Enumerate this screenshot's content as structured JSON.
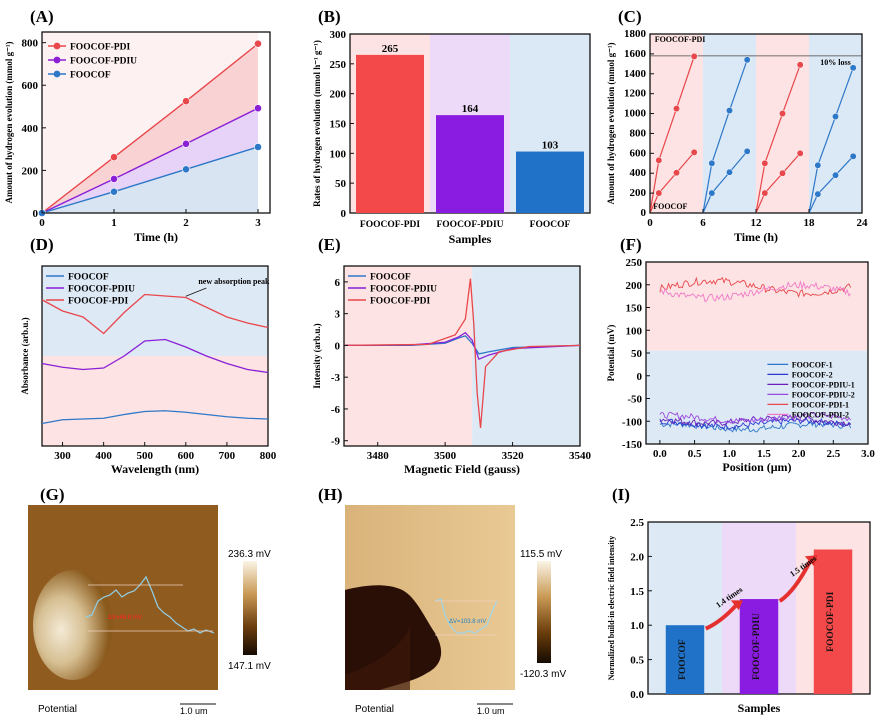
{
  "chart_data": [
    {
      "panel": "(A)",
      "type": "line",
      "xlabel": "Time (h)",
      "ylabel": "Amount of hydrogen evolution  (mmol g⁻¹)",
      "xlim": [
        0,
        3
      ],
      "ylim": [
        0,
        800
      ],
      "xticks": [
        "0",
        "1",
        "2",
        "3"
      ],
      "yticks": [
        "0",
        "200",
        "400",
        "600",
        "800"
      ],
      "x": [
        0,
        1,
        2,
        3
      ],
      "series": [
        {
          "name": "FOOCOF-PDI",
          "color": "#e8474b",
          "values": [
            0,
            262,
            525,
            795
          ]
        },
        {
          "name": "FOOCOF-PDIU",
          "color": "#8a1fd6",
          "values": [
            0,
            160,
            325,
            492
          ]
        },
        {
          "name": "FOOCOF",
          "color": "#2e78c9",
          "values": [
            0,
            100,
            205,
            310
          ]
        }
      ],
      "legend": "top-left"
    },
    {
      "panel": "(B)",
      "type": "bar",
      "xlabel": "Samples",
      "ylabel": "Rates of hydrogen evolution (mmol h⁻¹ g⁻¹)",
      "ylim": [
        0,
        300
      ],
      "yticks": [
        "0",
        "50",
        "100",
        "150",
        "200",
        "250",
        "300"
      ],
      "categories": [
        "FOOCOF-PDI",
        "FOOCOF-PDIU",
        "FOOCOF"
      ],
      "values": [
        265,
        164,
        103
      ],
      "labels": [
        "265",
        "164",
        "103"
      ],
      "colors": [
        "#f4494a",
        "#8a1be0",
        "#1f72c8"
      ]
    },
    {
      "panel": "(C)",
      "type": "line",
      "xlabel": "Time (h)",
      "ylabel": "Amount of hydrogen evolution  (mmol g⁻¹)",
      "xlim": [
        0,
        24
      ],
      "ylim": [
        0,
        1800
      ],
      "xticks": [
        "0",
        "6",
        "12",
        "18",
        "24"
      ],
      "yticks": [
        "0",
        "200",
        "400",
        "600",
        "800",
        "1000",
        "1200",
        "1400",
        "1600",
        "1800"
      ],
      "annotations": [
        "FOOCOF-PDI",
        "FOOCOF",
        "10% loss"
      ],
      "reference_line": 1580,
      "series": [
        {
          "name": "FOOCOF-PDI",
          "color": "#e8474b",
          "cycles": [
            [
              [
                0,
                0
              ],
              [
                1,
                530
              ],
              [
                3,
                1050
              ],
              [
                5,
                1575
              ]
            ],
            [
              [
                12,
                0
              ],
              [
                13,
                500
              ],
              [
                15,
                1000
              ],
              [
                17,
                1490
              ]
            ]
          ]
        },
        {
          "name": "FOOCOF-PDI-2",
          "color": "#e8474b",
          "cycles": [
            [
              [
                0,
                0
              ],
              [
                1,
                200
              ],
              [
                3,
                405
              ],
              [
                5,
                610
              ]
            ],
            [
              [
                12,
                0
              ],
              [
                13,
                200
              ],
              [
                15,
                400
              ],
              [
                17,
                600
              ]
            ]
          ]
        },
        {
          "name": "FOOCOF",
          "color": "#2e78c9",
          "cycles": [
            [
              [
                6,
                0
              ],
              [
                7,
                500
              ],
              [
                9,
                1030
              ],
              [
                11,
                1540
              ]
            ],
            [
              [
                18,
                0
              ],
              [
                19,
                480
              ],
              [
                21,
                970
              ],
              [
                23,
                1460
              ]
            ]
          ]
        },
        {
          "name": "FOOCOF-2",
          "color": "#2e78c9",
          "cycles": [
            [
              [
                6,
                0
              ],
              [
                7,
                200
              ],
              [
                9,
                410
              ],
              [
                11,
                620
              ]
            ],
            [
              [
                18,
                0
              ],
              [
                19,
                190
              ],
              [
                21,
                380
              ],
              [
                23,
                570
              ]
            ]
          ]
        }
      ]
    },
    {
      "panel": "(D)",
      "type": "line",
      "xlabel": "Wavelength (nm)",
      "ylabel": "Absorbance (arb.u.)",
      "xlim": [
        250,
        800
      ],
      "xticks": [
        "300",
        "400",
        "500",
        "600",
        "700",
        "800"
      ],
      "annotations": [
        "new absorption peak"
      ],
      "legend": "top-left",
      "x": [
        250,
        300,
        350,
        400,
        450,
        500,
        550,
        600,
        650,
        700,
        750,
        800
      ],
      "series": [
        {
          "name": "FOOCOF",
          "color": "#2e78c9",
          "values": [
            0.3,
            0.35,
            0.36,
            0.37,
            0.42,
            0.46,
            0.47,
            0.45,
            0.42,
            0.39,
            0.37,
            0.36
          ]
        },
        {
          "name": "FOOCOF-PDIU",
          "color": "#8a1fd6",
          "values": [
            1.1,
            1.05,
            1.02,
            1.04,
            1.2,
            1.4,
            1.42,
            1.32,
            1.2,
            1.1,
            1.02,
            0.98
          ]
        },
        {
          "name": "FOOCOF-PDI",
          "color": "#e8474b",
          "values": [
            1.95,
            1.8,
            1.72,
            1.5,
            1.78,
            2.02,
            2.0,
            1.98,
            1.85,
            1.72,
            1.64,
            1.58
          ]
        }
      ]
    },
    {
      "panel": "(E)",
      "type": "line",
      "xlabel": "Magnetic Field (gauss)",
      "ylabel": "Intensity (arb.u.)",
      "xlim": [
        3470,
        3540
      ],
      "ylim": [
        -9.5,
        7.5
      ],
      "xticks": [
        "3480",
        "3500",
        "3520",
        "3540"
      ],
      "yticks": [
        "6",
        "3",
        "0",
        "-3",
        "-6",
        "-9"
      ],
      "legend": "top-left",
      "series": [
        {
          "name": "FOOCOF",
          "color": "#2e78c9",
          "points": [
            [
              3470,
              0
            ],
            [
              3490,
              0
            ],
            [
              3500,
              0.2
            ],
            [
              3504,
              0.7
            ],
            [
              3506,
              0.9
            ],
            [
              3508,
              0.2
            ],
            [
              3510,
              -0.8
            ],
            [
              3513,
              -0.6
            ],
            [
              3520,
              -0.2
            ],
            [
              3540,
              0
            ]
          ]
        },
        {
          "name": "FOOCOF-PDIU",
          "color": "#8a1fd6",
          "points": [
            [
              3470,
              0
            ],
            [
              3490,
              0.05
            ],
            [
              3500,
              0.3
            ],
            [
              3504,
              0.8
            ],
            [
              3506,
              1.2
            ],
            [
              3508,
              0.5
            ],
            [
              3510,
              -1.3
            ],
            [
              3513,
              -0.9
            ],
            [
              3520,
              -0.3
            ],
            [
              3540,
              0
            ]
          ]
        },
        {
          "name": "FOOCOF-PDI",
          "color": "#e8474b",
          "points": [
            [
              3470,
              0
            ],
            [
              3495,
              0.1
            ],
            [
              3503,
              1.0
            ],
            [
              3506,
              2.5
            ],
            [
              3507.5,
              6.3
            ],
            [
              3508.5,
              2.0
            ],
            [
              3509.5,
              -4.5
            ],
            [
              3510.5,
              -7.8
            ],
            [
              3512,
              -2.0
            ],
            [
              3516,
              -0.6
            ],
            [
              3525,
              -0.1
            ],
            [
              3540,
              0
            ]
          ]
        }
      ]
    },
    {
      "panel": "(F)",
      "type": "line",
      "xlabel": "Position (μm)",
      "ylabel": "Potential (mV)",
      "xlim": [
        -0.2,
        3.0
      ],
      "ylim": [
        -150,
        250
      ],
      "xticks": [
        "0.0",
        "0.5",
        "1.0",
        "1.5",
        "2.0",
        "2.5",
        "3.0"
      ],
      "yticks": [
        "250",
        "200",
        "150",
        "100",
        "50",
        "0",
        "-50",
        "-100",
        "-150"
      ],
      "legend": "center-right",
      "series": [
        {
          "name": "FOOCOF-1",
          "color": "#2e78c9",
          "level": -112
        },
        {
          "name": "FOOCOF-2",
          "color": "#2a3bd1",
          "level": -105
        },
        {
          "name": "FOOCOF-PDIU-1",
          "color": "#6a1fb6",
          "level": -98
        },
        {
          "name": "FOOCOF-PDIU-2",
          "color": "#9b4ae0",
          "level": -93
        },
        {
          "name": "FOOCOF-PDI-1",
          "color": "#e8474b",
          "level": 195
        },
        {
          "name": "FOOCOF-PDI-2",
          "color": "#f07ac8",
          "level": 185
        }
      ]
    },
    {
      "panel": "(I)",
      "type": "bar",
      "xlabel": "Samples",
      "ylabel": "Normalized build-in electric field intensity",
      "ylim": [
        0,
        2.5
      ],
      "yticks": [
        "0.0",
        "0.5",
        "1.0",
        "1.5",
        "2.0",
        "2.5"
      ],
      "categories": [
        "FOOCOF",
        "FOOCOF-PDIU",
        "FOOCOF-PDI"
      ],
      "values": [
        1.0,
        1.38,
        2.1
      ],
      "colors": [
        "#1f72c8",
        "#8a1be0",
        "#f4494a"
      ],
      "annotations": [
        "1.4 times",
        "1.5 times"
      ]
    }
  ],
  "panels": {
    "a": "(A)",
    "b": "(B)",
    "c": "(C)",
    "d": "(D)",
    "e": "(E)",
    "f": "(F)",
    "g": "(G)",
    "h": "(H)",
    "i": "(I)"
  },
  "afm_g": {
    "max": "236.3 mV",
    "min": "147.1 mV",
    "label": "Potential",
    "scalebar": "1.0 um",
    "delta": "ΔV=46.8 mV"
  },
  "afm_h": {
    "max": "115.5 mV",
    "min": "-120.3 mV",
    "label": "Potential",
    "scalebar": "1.0 um",
    "delta": "ΔV=103.8 mV"
  }
}
